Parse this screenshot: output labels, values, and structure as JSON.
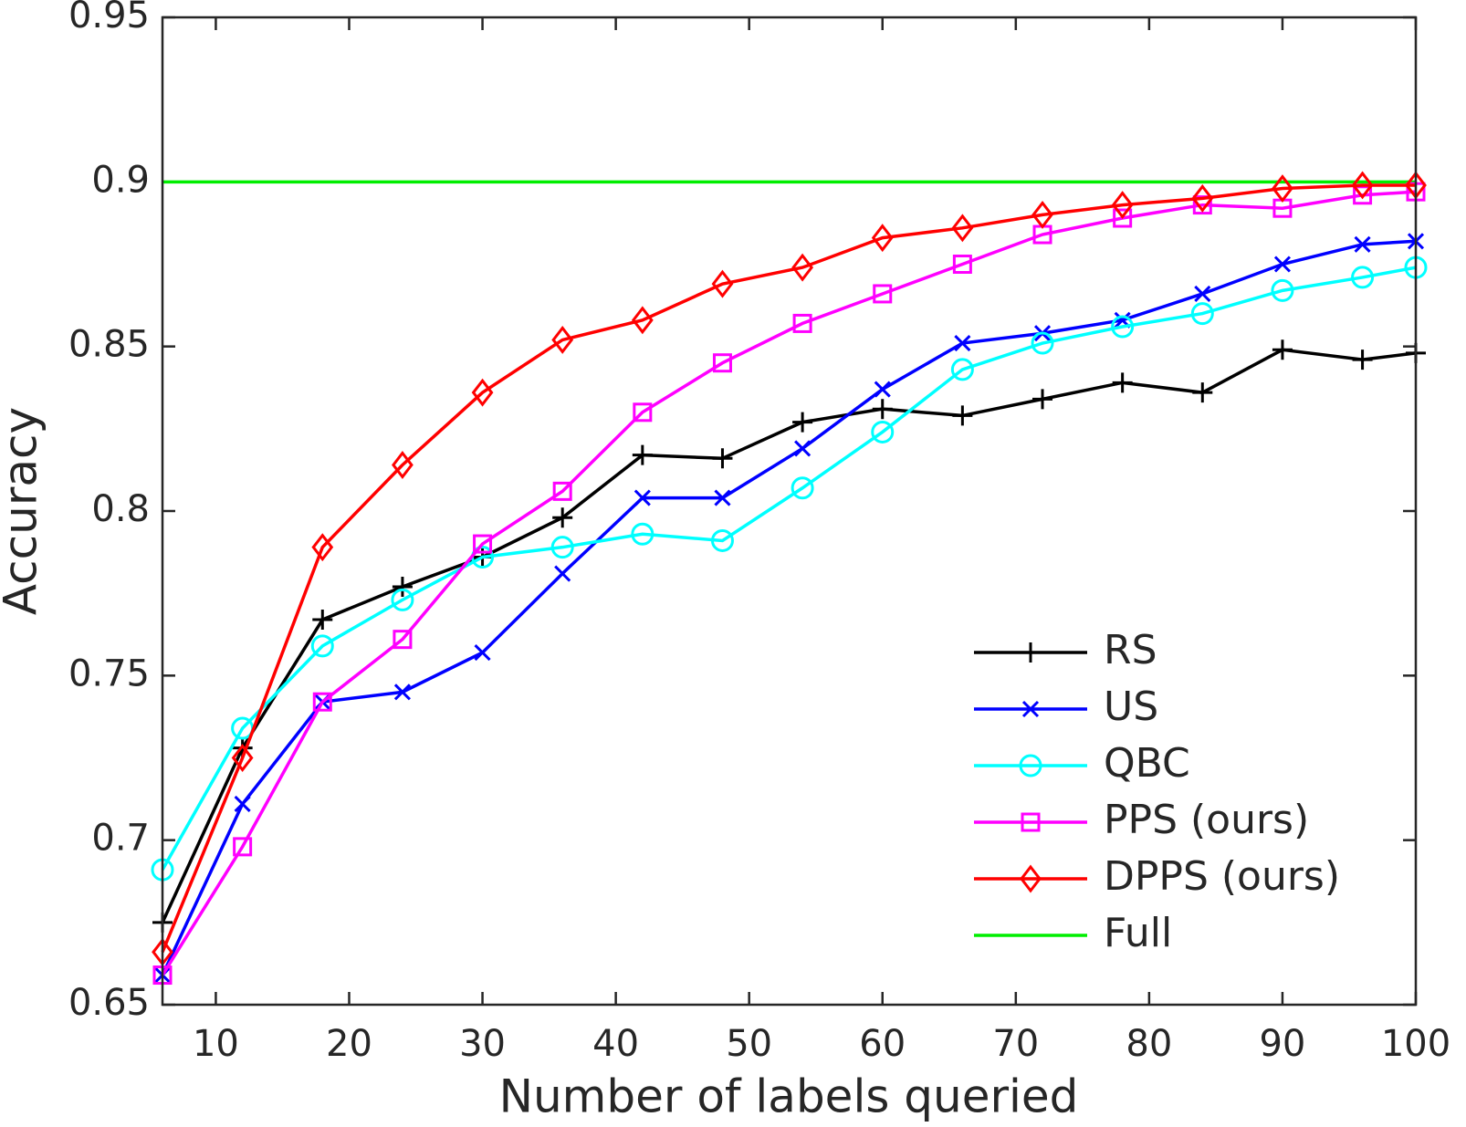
{
  "chart_data": {
    "type": "line",
    "xlabel": "Number of labels queried",
    "ylabel": "Accuracy",
    "x": [
      6,
      12,
      18,
      24,
      30,
      36,
      42,
      48,
      54,
      60,
      66,
      72,
      78,
      84,
      90,
      96,
      100
    ],
    "xlim": [
      6,
      100
    ],
    "xticks": [
      10,
      20,
      30,
      40,
      50,
      60,
      70,
      80,
      90,
      100
    ],
    "ylim": [
      0.65,
      0.95
    ],
    "yticks": [
      0.65,
      0.7,
      0.75,
      0.8,
      0.85,
      0.9,
      0.95
    ],
    "legend": "lower right",
    "series": [
      {
        "name": "RS",
        "color": "#000000",
        "marker": "plus",
        "values": [
          0.675,
          0.728,
          0.767,
          0.777,
          0.786,
          0.798,
          0.817,
          0.816,
          0.827,
          0.831,
          0.829,
          0.834,
          0.839,
          0.836,
          0.849,
          0.846,
          0.848
        ]
      },
      {
        "name": "US",
        "color": "#0000ff",
        "marker": "x",
        "values": [
          0.659,
          0.711,
          0.742,
          0.745,
          0.757,
          0.781,
          0.804,
          0.804,
          0.819,
          0.837,
          0.851,
          0.854,
          0.858,
          0.866,
          0.875,
          0.881,
          0.882
        ]
      },
      {
        "name": "QBC",
        "color": "#00ffff",
        "marker": "circle",
        "values": [
          0.691,
          0.734,
          0.759,
          0.773,
          0.786,
          0.789,
          0.793,
          0.791,
          0.807,
          0.824,
          0.843,
          0.851,
          0.856,
          0.86,
          0.867,
          0.871,
          0.874
        ]
      },
      {
        "name": "PPS (ours)",
        "color": "#ff00ff",
        "marker": "square",
        "values": [
          0.659,
          0.698,
          0.742,
          0.761,
          0.79,
          0.806,
          0.83,
          0.845,
          0.857,
          0.866,
          0.875,
          0.884,
          0.889,
          0.893,
          0.892,
          0.896,
          0.897
        ]
      },
      {
        "name": "DPPS (ours)",
        "color": "#ff0000",
        "marker": "diamond",
        "values": [
          0.666,
          0.725,
          0.789,
          0.814,
          0.836,
          0.852,
          0.858,
          0.869,
          0.874,
          0.883,
          0.886,
          0.89,
          0.893,
          0.895,
          0.898,
          0.899,
          0.899
        ]
      },
      {
        "name": "Full",
        "color": "#00ee00",
        "marker": "none",
        "values": [
          0.9,
          0.9,
          0.9,
          0.9,
          0.9,
          0.9,
          0.9,
          0.9,
          0.9,
          0.9,
          0.9,
          0.9,
          0.9,
          0.9,
          0.9,
          0.9,
          0.9
        ]
      }
    ]
  }
}
